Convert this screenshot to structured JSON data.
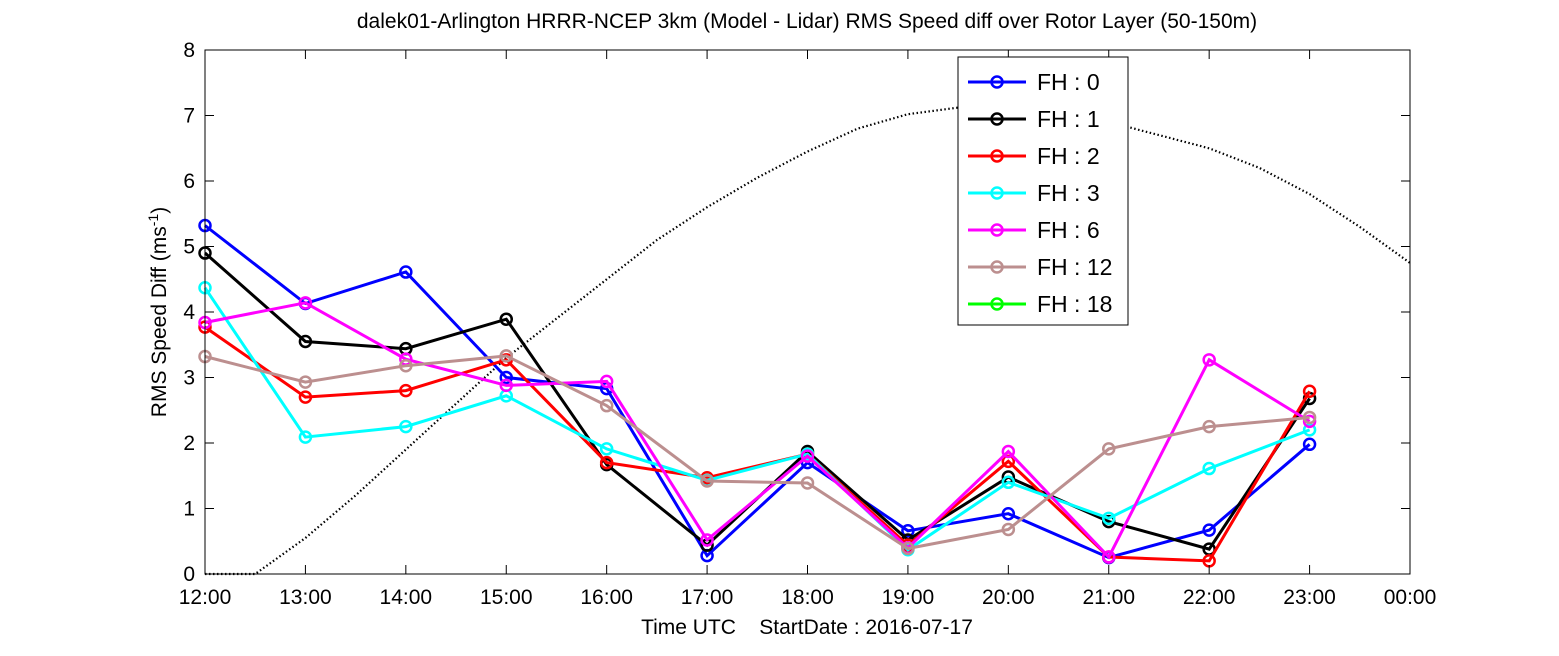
{
  "chart_data": {
    "type": "line",
    "title": "dalek01-Arlington HRRR-NCEP 3km (Model - Lidar) RMS Speed diff over Rotor Layer (50-150m)",
    "xlabel": "Time UTC    StartDate : 2016-07-17",
    "ylabel_main": "RMS Speed Diff (ms",
    "ylabel_sup": "-1",
    "ylabel_end": ")",
    "x_ticks": [
      "12:00",
      "13:00",
      "14:00",
      "15:00",
      "16:00",
      "17:00",
      "18:00",
      "19:00",
      "20:00",
      "21:00",
      "22:00",
      "23:00",
      "00:00"
    ],
    "y_ticks": [
      "0",
      "1",
      "2",
      "3",
      "4",
      "5",
      "6",
      "7",
      "8"
    ],
    "xlim": [
      0,
      12
    ],
    "ylim": [
      0,
      8
    ],
    "grid": false,
    "legend_position": "top-right",
    "series": [
      {
        "name": "FH : 0",
        "color": "#0000ff",
        "values": [
          5.32,
          4.13,
          4.61,
          3.0,
          2.83,
          0.28,
          1.7,
          0.66,
          0.92,
          0.25,
          0.67,
          1.98
        ]
      },
      {
        "name": "FH : 1",
        "color": "#000000",
        "values": [
          4.9,
          3.55,
          3.44,
          3.89,
          1.67,
          0.44,
          1.87,
          0.52,
          1.48,
          0.8,
          0.38,
          2.68
        ]
      },
      {
        "name": "FH : 2",
        "color": "#ff0000",
        "values": [
          3.77,
          2.7,
          2.8,
          3.27,
          1.7,
          1.47,
          1.83,
          0.44,
          1.72,
          0.26,
          0.2,
          2.79
        ]
      },
      {
        "name": "FH : 3",
        "color": "#00ffff",
        "values": [
          4.37,
          2.09,
          2.25,
          2.72,
          1.91,
          1.43,
          1.83,
          0.37,
          1.4,
          0.85,
          1.61,
          2.2
        ]
      },
      {
        "name": "FH : 6",
        "color": "#ff00ff",
        "values": [
          3.84,
          4.14,
          3.28,
          2.88,
          2.94,
          0.52,
          1.8,
          0.4,
          1.87,
          0.26,
          3.27,
          2.33
        ]
      },
      {
        "name": "FH : 12",
        "color": "#bc8f8f",
        "values": [
          3.32,
          2.93,
          3.18,
          3.33,
          2.57,
          1.42,
          1.39,
          0.39,
          0.68,
          1.91,
          2.25,
          2.39
        ]
      },
      {
        "name": "FH : 18",
        "color": "#00ff00",
        "values": []
      }
    ],
    "reference_curve": {
      "style": "dotted",
      "color": "#000000",
      "x": [
        0,
        0.5,
        1,
        1.5,
        2,
        2.5,
        3,
        3.5,
        4,
        4.5,
        5,
        5.5,
        6,
        6.5,
        7,
        7.5,
        8,
        8.5,
        9,
        9.5,
        10,
        10.5,
        11,
        11.5,
        12
      ],
      "y": [
        0,
        0,
        0.55,
        1.2,
        1.9,
        2.6,
        3.3,
        3.9,
        4.5,
        5.1,
        5.6,
        6.05,
        6.45,
        6.8,
        7.02,
        7.12,
        7.12,
        7.05,
        6.9,
        6.7,
        6.5,
        6.2,
        5.8,
        5.3,
        4.75
      ]
    }
  }
}
